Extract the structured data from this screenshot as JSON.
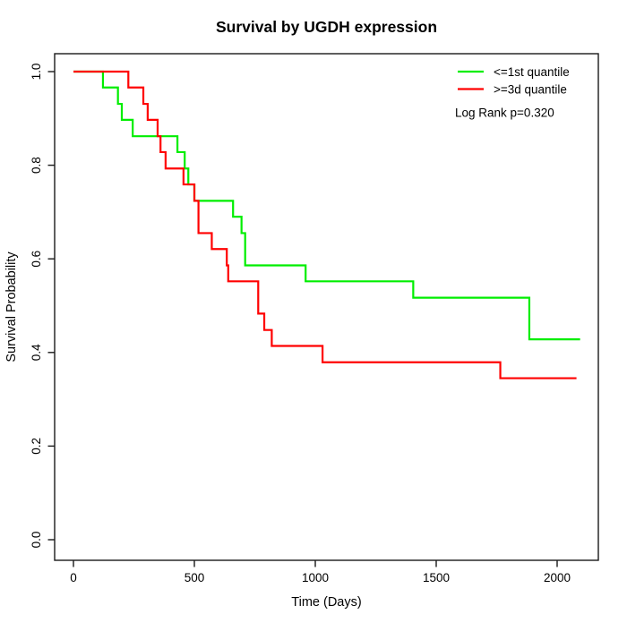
{
  "chart_data": {
    "type": "line",
    "interpolation": "step-after",
    "title": "Survival by UGDH expression",
    "xlabel": "Time (Days)",
    "ylabel": "Survival Probability",
    "x_ticks": [
      0,
      500,
      1000,
      1500,
      2000
    ],
    "y_ticks": [
      0.0,
      0.2,
      0.4,
      0.6,
      0.8,
      1.0
    ],
    "xlim": [
      -78,
      2170
    ],
    "ylim": [
      -0.04,
      1.04
    ],
    "grid": false,
    "legend_position": "top-right",
    "annotation": "Log Rank p=0.320",
    "series": [
      {
        "name": "<=1st quantile",
        "color": "#00ee00",
        "start": [
          0,
          1.0
        ],
        "steps": [
          [
            122,
            0.966
          ],
          [
            184,
            0.931
          ],
          [
            200,
            0.897
          ],
          [
            245,
            0.862
          ],
          [
            430,
            0.828
          ],
          [
            460,
            0.793
          ],
          [
            475,
            0.759
          ],
          [
            500,
            0.724
          ],
          [
            660,
            0.69
          ],
          [
            695,
            0.655
          ],
          [
            710,
            0.586
          ],
          [
            960,
            0.552
          ],
          [
            1405,
            0.517
          ],
          [
            1885,
            0.428
          ]
        ],
        "end_day": 2095
      },
      {
        "name": ">=3d quantile",
        "color": "#ff0000",
        "start": [
          0,
          1.0
        ],
        "steps": [
          [
            227,
            0.966
          ],
          [
            289,
            0.931
          ],
          [
            307,
            0.897
          ],
          [
            348,
            0.862
          ],
          [
            360,
            0.828
          ],
          [
            381,
            0.793
          ],
          [
            455,
            0.759
          ],
          [
            500,
            0.724
          ],
          [
            517,
            0.655
          ],
          [
            572,
            0.621
          ],
          [
            634,
            0.586
          ],
          [
            640,
            0.552
          ],
          [
            764,
            0.483
          ],
          [
            789,
            0.448
          ],
          [
            820,
            0.414
          ],
          [
            1030,
            0.379
          ],
          [
            1765,
            0.345
          ]
        ],
        "end_day": 2080
      }
    ]
  }
}
